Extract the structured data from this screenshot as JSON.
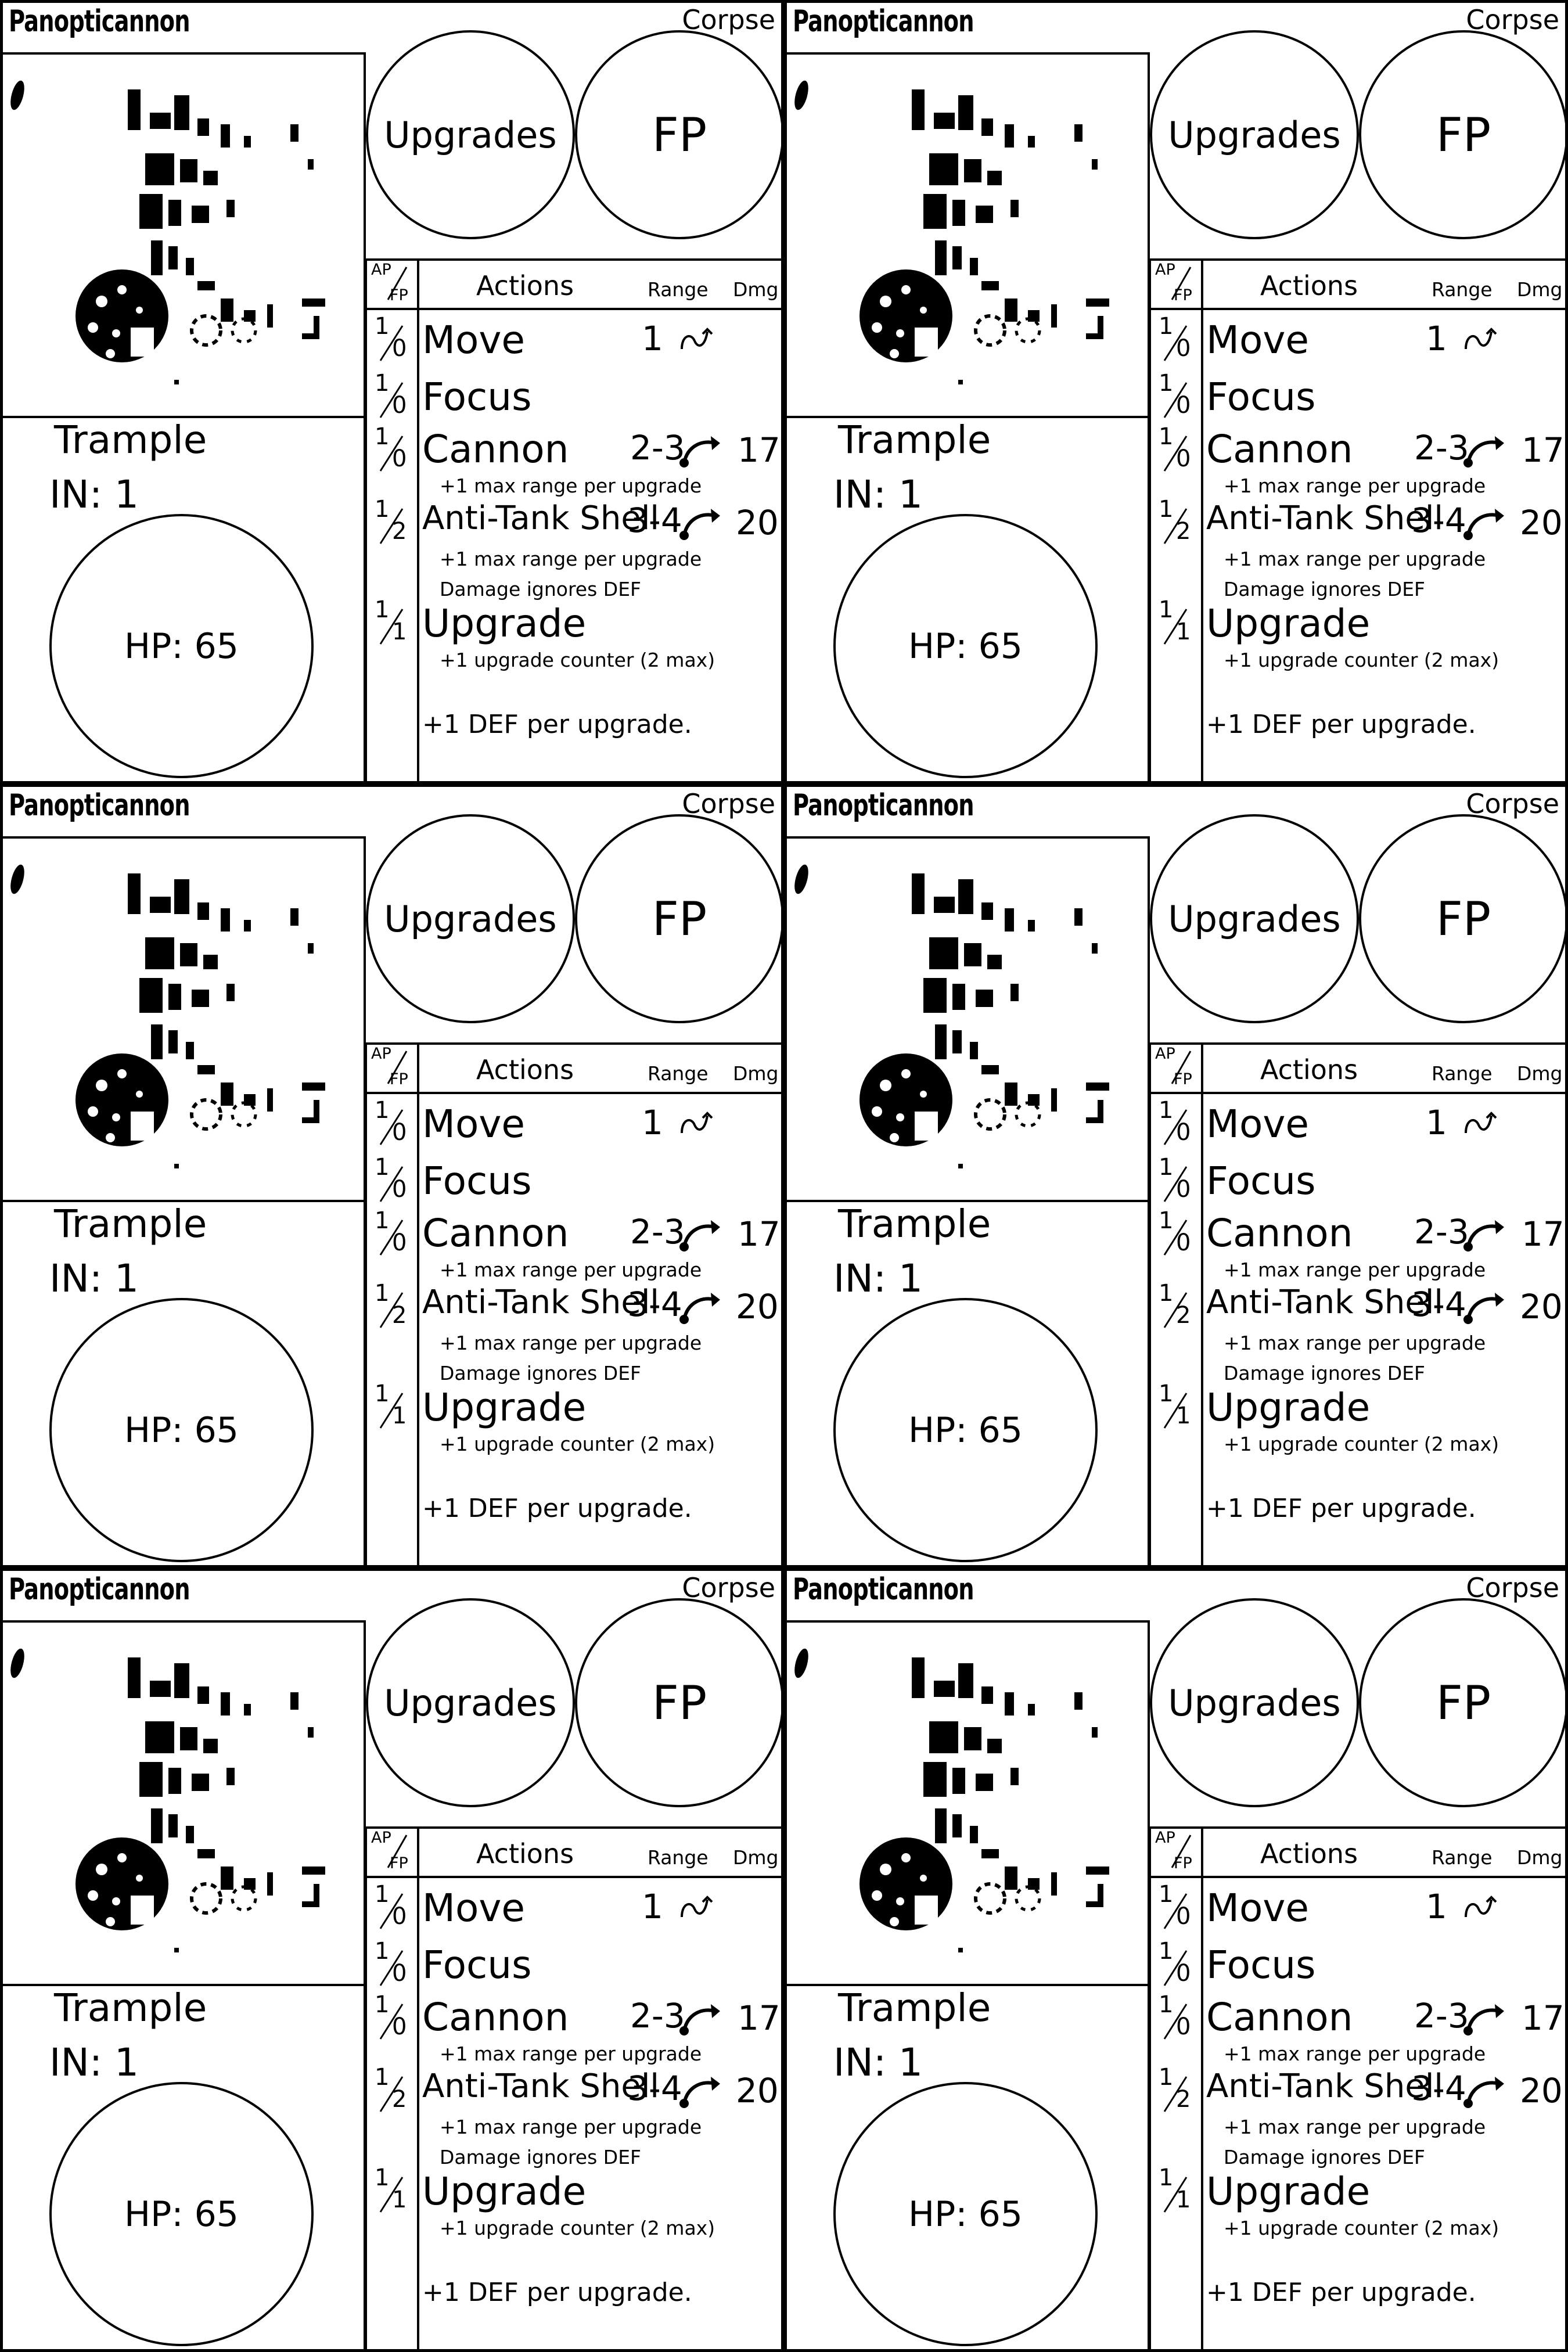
{
  "sheet": {
    "cards": [
      {
        "id": "card-1"
      },
      {
        "id": "card-2"
      },
      {
        "id": "card-3"
      },
      {
        "id": "card-4"
      },
      {
        "id": "card-5"
      },
      {
        "id": "card-6"
      }
    ]
  },
  "card": {
    "name": "Panopticannon",
    "type": "Corpse",
    "ability": "Trample",
    "initiative": "IN: 1",
    "hp": "HP: 65",
    "circles": {
      "upgrades": "Upgrades",
      "fp": "FP"
    },
    "header": {
      "ap": "AP",
      "fp": "FP",
      "actions": "Actions",
      "range": "Range",
      "dmg": "Dmg"
    },
    "actions": [
      {
        "ap": "1",
        "fp": "0",
        "name": "Move",
        "range": "1",
        "range_icon": "curvy-move-arrow-icon",
        "dmg": "",
        "notes": []
      },
      {
        "ap": "1",
        "fp": "0",
        "name": "Focus",
        "range": "",
        "dmg": "",
        "notes": []
      },
      {
        "ap": "1",
        "fp": "0",
        "name": "Cannon",
        "range": "2-3",
        "range_icon": "arc-shot-arrow-icon",
        "dmg": "17",
        "notes": [
          "+1 max range per upgrade"
        ]
      },
      {
        "ap": "1",
        "fp": "2",
        "name": "Anti-Tank Shell",
        "range": "3-4",
        "range_icon": "arc-shot-arrow-icon",
        "dmg": "20",
        "notes": [
          "+1 max range per upgrade",
          "Damage ignores DEF"
        ]
      },
      {
        "ap": "1",
        "fp": "1",
        "name": "Upgrade",
        "range": "",
        "dmg": "",
        "notes": [
          "+1 upgrade counter (2 max)"
        ]
      }
    ],
    "passive": "+1 DEF per upgrade.",
    "portrait": "robot-cannon-portrait-icon"
  }
}
